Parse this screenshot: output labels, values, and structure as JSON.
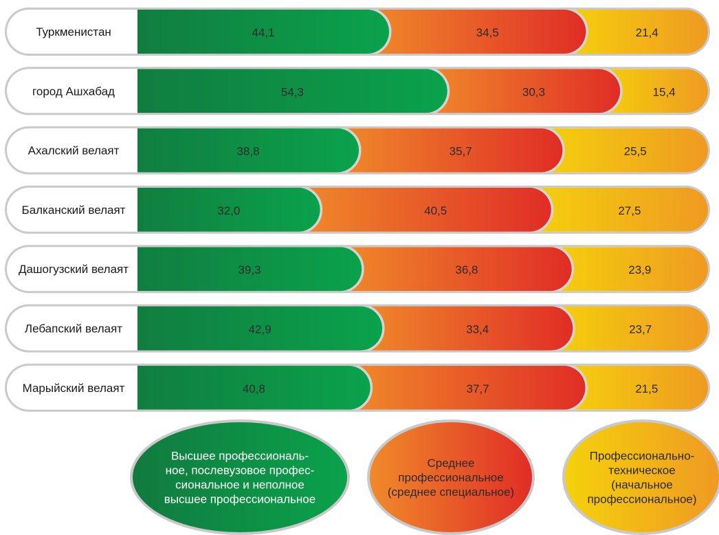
{
  "chart_data": {
    "type": "bar",
    "stacked": true,
    "orientation": "horizontal",
    "categories": [
      "Туркменистан",
      "город Ашхабад",
      "Ахалский велаят",
      "Балканский велаят",
      "Дашогузский велаят",
      "Лебапский велаят",
      "Марыйский велаят"
    ],
    "series": [
      {
        "name": "Высшее профессиональ-ное, послевузовое профес-сиональное и неполное высшее профессиональное",
        "legend_lines": [
          "Высшее профессиональ-",
          "ное, послевузовое профес-",
          "сиональное и неполное",
          "высшее профессиональное"
        ],
        "values": [
          44.1,
          54.3,
          38.8,
          32.0,
          39.3,
          42.9,
          40.8
        ],
        "labels": [
          "44,1",
          "54,3",
          "38,8",
          "32,0",
          "39,3",
          "42,9",
          "40,8"
        ],
        "color_start": "#117a3e",
        "color_end": "#0aa24c"
      },
      {
        "name": "Среднее профессиональное (среднее специальное)",
        "legend_lines": [
          "Среднее",
          "профессиональное",
          "(среднее специальное)"
        ],
        "values": [
          34.5,
          30.3,
          35.7,
          40.5,
          36.8,
          33.4,
          37.7
        ],
        "labels": [
          "34,5",
          "30,3",
          "35,7",
          "40,5",
          "36,8",
          "33,4",
          "37,7"
        ],
        "color_start": "#f08a2a",
        "color_end": "#e02d26"
      },
      {
        "name": "Профессионально-техническое (начальное профессиональное)",
        "legend_lines": [
          "Профессионально-",
          "техническое",
          "(начальное",
          "профессиональное)"
        ],
        "values": [
          21.4,
          15.4,
          25.5,
          27.5,
          23.9,
          23.7,
          21.5
        ],
        "labels": [
          "21,4",
          "15,4",
          "25,5",
          "27,5",
          "23,9",
          "23,7",
          "21,5"
        ],
        "color_start": "#f5d10c",
        "color_end": "#ef9a22"
      }
    ],
    "xlim": [
      0,
      100
    ],
    "legend_position": "bottom",
    "grid": false
  }
}
